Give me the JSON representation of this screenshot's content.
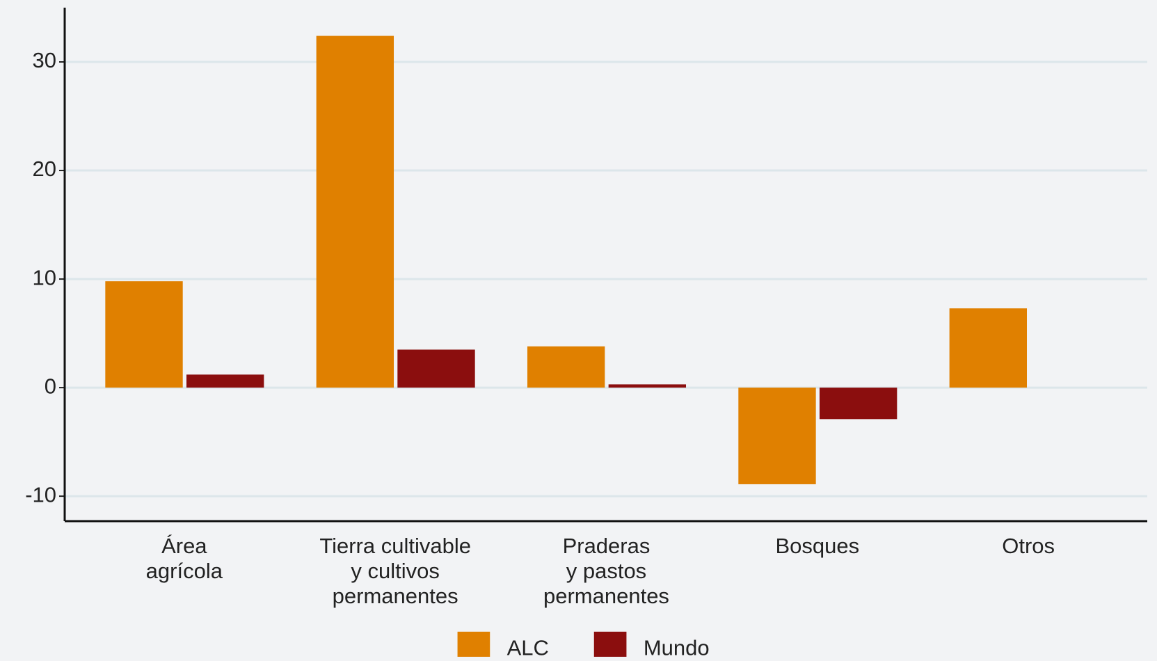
{
  "chart_data": {
    "type": "bar",
    "categories": [
      [
        "Área",
        "agrícola"
      ],
      [
        "Tierra cultivable",
        "y cultivos",
        "permanentes"
      ],
      [
        "Praderas",
        "y pastos",
        "permanentes"
      ],
      [
        "Bosques"
      ],
      [
        "Otros"
      ]
    ],
    "series": [
      {
        "name": "ALC",
        "color": "#e08000",
        "values": [
          9.8,
          32.4,
          3.8,
          -8.9,
          7.3
        ]
      },
      {
        "name": "Mundo",
        "color": "#8b0e0e",
        "values": [
          1.2,
          3.5,
          0.3,
          -2.9,
          null
        ]
      }
    ],
    "ylim": [
      -12.3,
      35
    ],
    "yticks": [
      -10,
      0,
      10,
      20,
      30
    ],
    "grid": true
  }
}
